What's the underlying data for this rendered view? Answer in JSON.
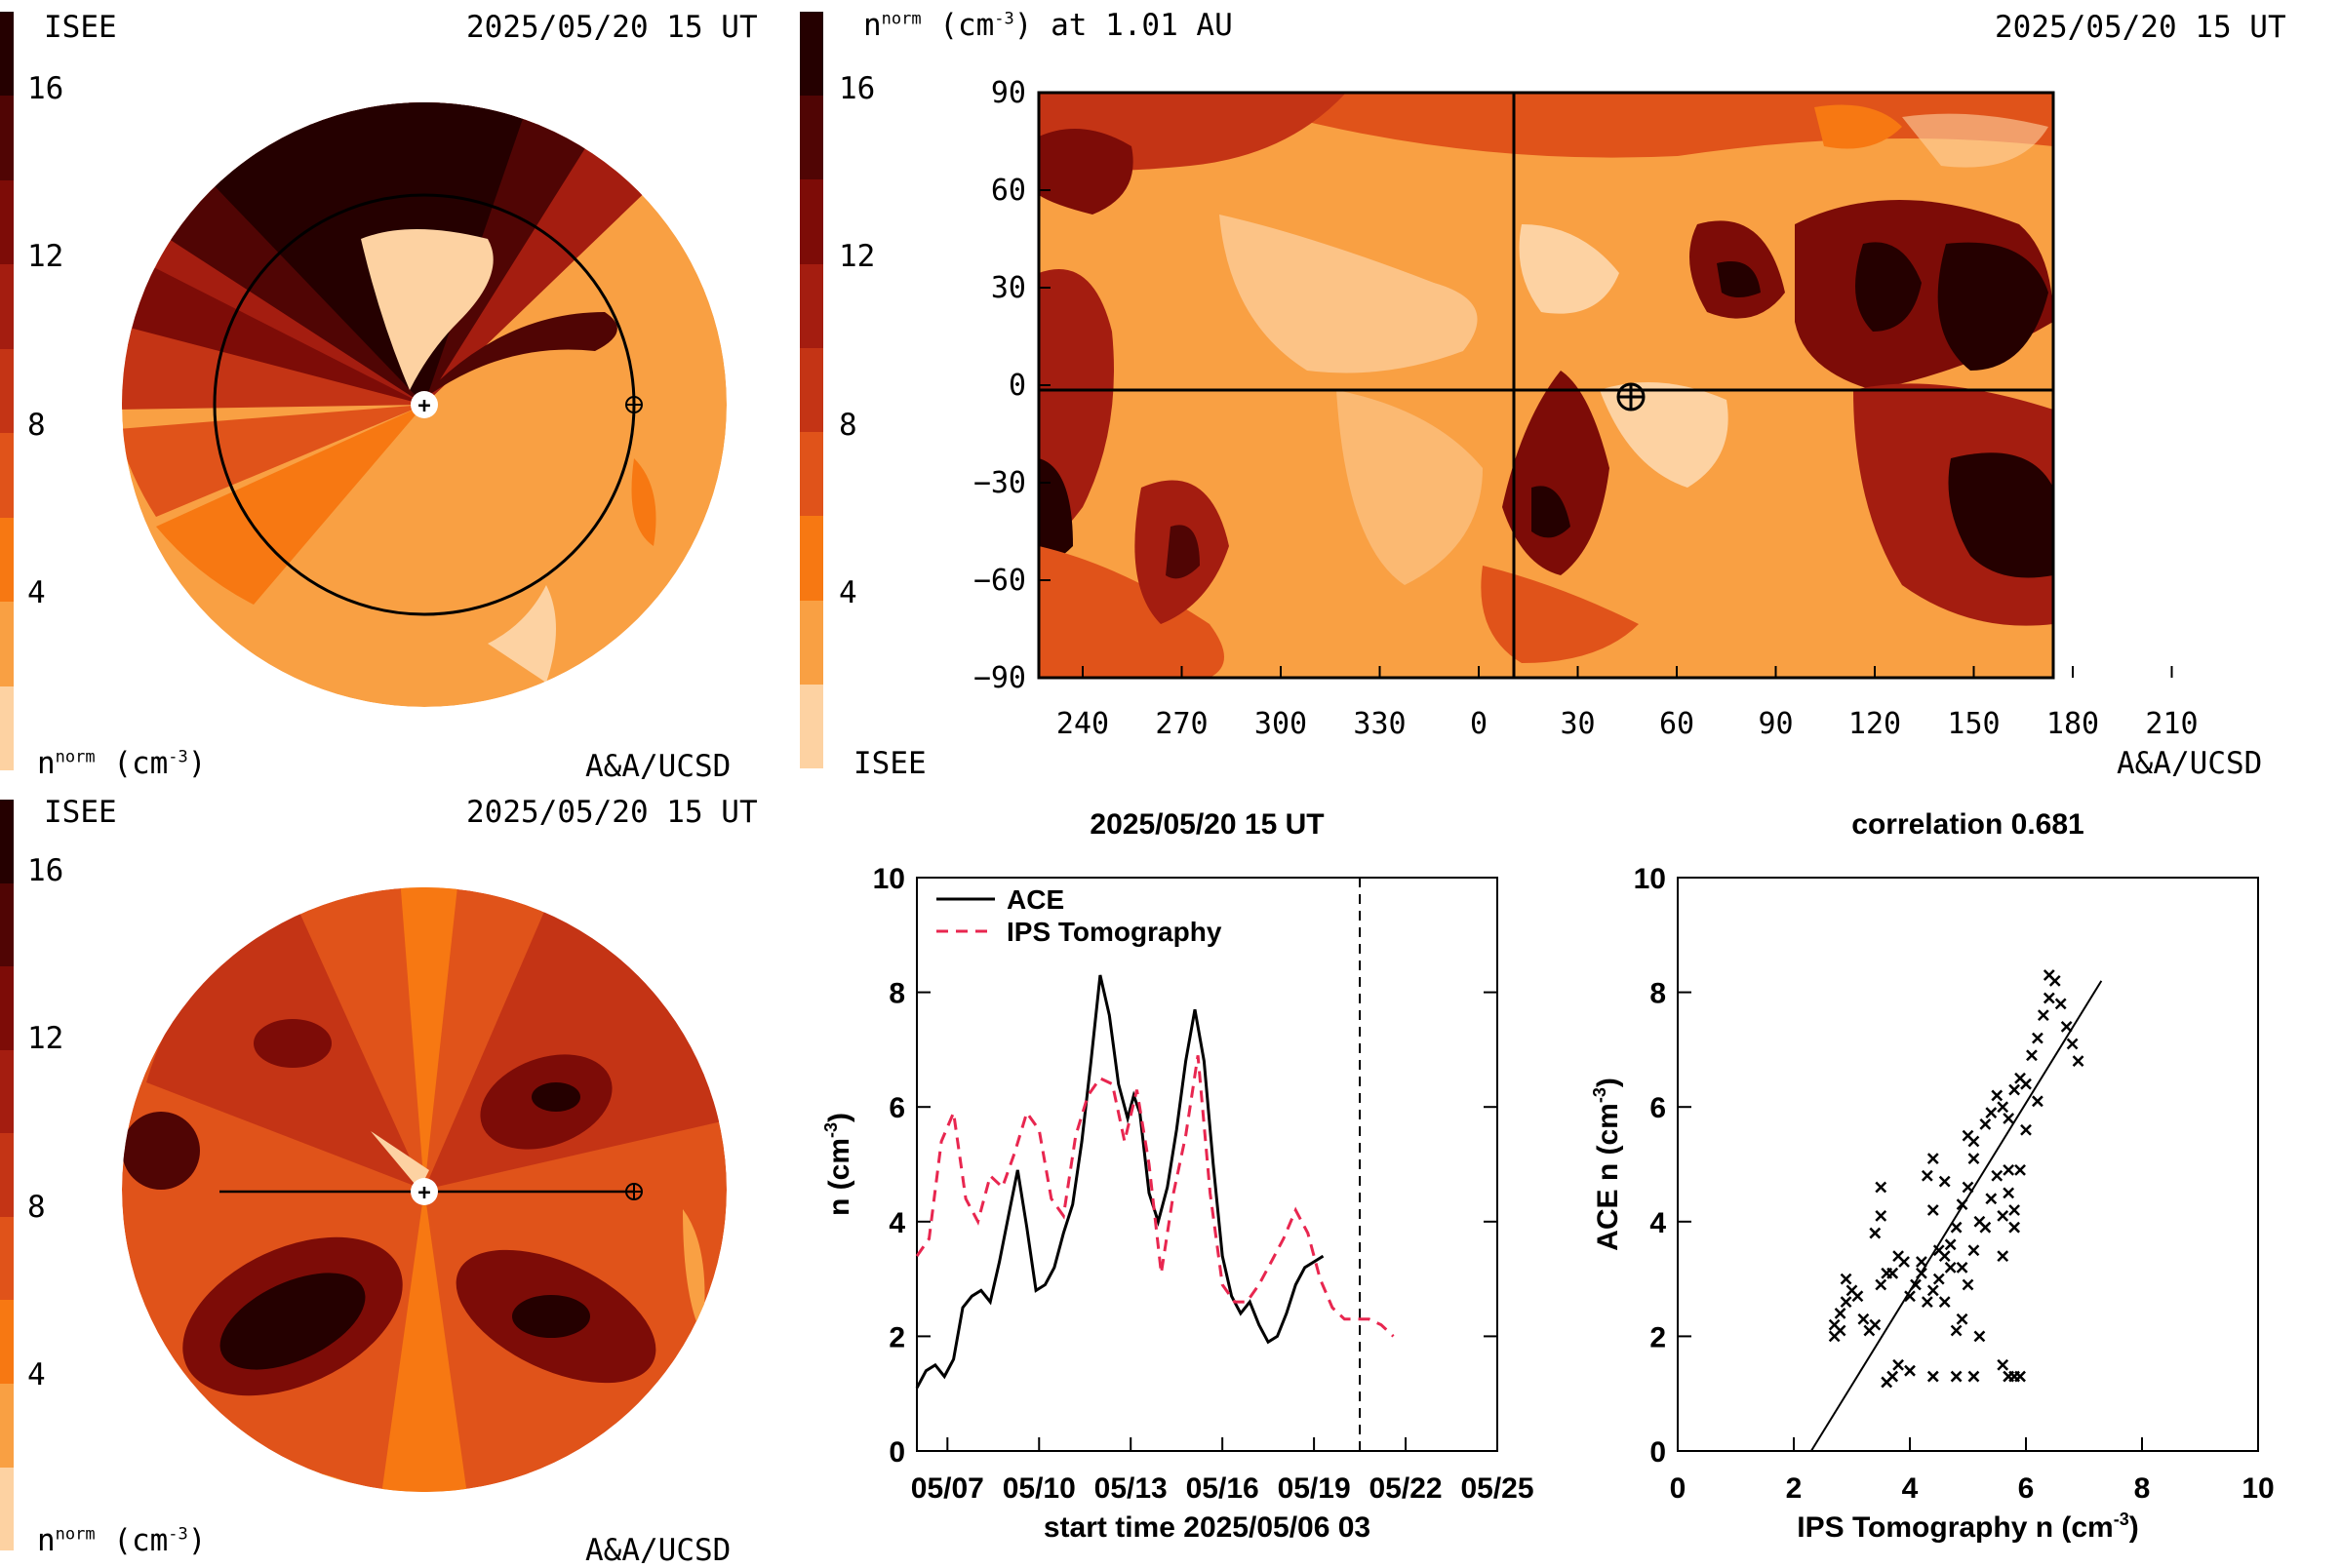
{
  "palette": [
    "#fdd2a2",
    "#f9a043",
    "#f77812",
    "#e0531a",
    "#c43415",
    "#a41d10",
    "#7d0c07",
    "#500504",
    "#250000"
  ],
  "panels": {
    "tl": {
      "org": "ISEE",
      "date": "2025/05/20 15 UT",
      "ylabel": "n",
      "ylabel_sup": "norm",
      "ylabel_unit": "(cm",
      "ylabel_unit_sup": "-3",
      "ylabel_close": ")",
      "credit": "A&A/UCSD",
      "colorbar_ticks": [
        "16",
        "12",
        "8",
        "4"
      ]
    },
    "bl": {
      "org": "ISEE",
      "date": "2025/05/20 15 UT",
      "ylabel": "n",
      "ylabel_sup": "norm",
      "ylabel_unit": "(cm",
      "ylabel_unit_sup": "-3",
      "ylabel_close": ")",
      "credit": "A&A/UCSD",
      "colorbar_ticks": [
        "16",
        "12",
        "8",
        "4"
      ]
    },
    "tr": {
      "title_n": "n",
      "title_sup": "norm",
      "title_unit": "(cm",
      "title_unit_sup": "-3",
      "title_rest": ") at 1.01 AU",
      "date": "2025/05/20 15 UT",
      "org": "ISEE",
      "credit": "A&A/UCSD",
      "colorbar_ticks": [
        "16",
        "12",
        "8",
        "4"
      ],
      "yticks": [
        "90",
        "60",
        "30",
        "0",
        "−30",
        "−60",
        "−90"
      ],
      "xticks": [
        "240",
        "270",
        "300",
        "330",
        "0",
        "30",
        "60",
        "90",
        "120",
        "150",
        "180",
        "210"
      ]
    }
  },
  "chart_data": [
    {
      "type": "line",
      "title": "2025/05/20 15 UT",
      "xlabel": "start time 2025/05/06 03",
      "ylabel": "n (cm",
      "ylabel_sup": "-3",
      "ylabel_close": ")",
      "xticks": [
        "05/07",
        "05/10",
        "05/13",
        "05/16",
        "05/19",
        "05/22",
        "05/25"
      ],
      "yticks": [
        "0",
        "2",
        "4",
        "6",
        "8",
        "10"
      ],
      "xlim": [
        0,
        19
      ],
      "ylim": [
        0,
        10
      ],
      "current_time_marker": 14.5,
      "series": [
        {
          "name": "ACE",
          "color": "#000000",
          "dash": "none",
          "x": [
            0,
            0.3,
            0.6,
            0.9,
            1.2,
            1.5,
            1.8,
            2.1,
            2.4,
            2.7,
            3.0,
            3.3,
            3.6,
            3.9,
            4.2,
            4.5,
            4.8,
            5.1,
            5.4,
            5.7,
            6.0,
            6.3,
            6.6,
            6.9,
            7.1,
            7.3,
            7.6,
            7.9,
            8.2,
            8.5,
            8.8,
            9.1,
            9.4,
            9.7,
            10.0,
            10.3,
            10.6,
            10.9,
            11.2,
            11.5,
            11.8,
            12.1,
            12.4,
            12.7,
            13.0,
            13.3,
            13.6,
            13.9,
            14.2,
            14.5
          ],
          "values": [
            1.1,
            1.4,
            1.5,
            1.3,
            1.6,
            2.5,
            2.7,
            2.8,
            2.6,
            3.3,
            4.1,
            4.9,
            3.9,
            2.8,
            2.9,
            3.2,
            3.8,
            4.3,
            5.4,
            6.8,
            8.3,
            7.6,
            6.4,
            5.8,
            6.2,
            5.9,
            4.5,
            4.0,
            4.6,
            5.6,
            6.8,
            7.7,
            6.8,
            5.0,
            3.4,
            2.7,
            2.4,
            2.6,
            2.2,
            1.9,
            2.0,
            2.4,
            2.9,
            3.2,
            3.3,
            3.4,
            null,
            null,
            null,
            null
          ]
        },
        {
          "name": "IPS Tomography",
          "color": "#e8264f",
          "dash": "12,8",
          "x": [
            0,
            0.4,
            0.8,
            1.2,
            1.6,
            2.0,
            2.4,
            2.8,
            3.2,
            3.6,
            4.0,
            4.4,
            4.8,
            5.2,
            5.6,
            6.0,
            6.4,
            6.8,
            7.2,
            7.6,
            8.0,
            8.4,
            8.8,
            9.2,
            9.6,
            10.0,
            10.4,
            10.8,
            11.2,
            11.6,
            12.0,
            12.4,
            12.8,
            13.2,
            13.6,
            14.0,
            14.4,
            14.8,
            15.2,
            15.6,
            16.0,
            16.4,
            16.8,
            17.2,
            17.6,
            18.0,
            18.4,
            18.8,
            19.0
          ],
          "values": [
            3.4,
            3.7,
            5.4,
            5.9,
            4.4,
            4.0,
            4.8,
            4.6,
            5.2,
            5.9,
            5.6,
            4.4,
            4.1,
            5.5,
            6.2,
            6.5,
            6.4,
            5.4,
            6.3,
            5.0,
            3.1,
            4.5,
            5.5,
            6.9,
            4.5,
            2.9,
            2.6,
            2.6,
            2.9,
            3.3,
            3.7,
            4.2,
            3.8,
            3.0,
            2.5,
            2.3,
            2.3,
            2.3,
            2.2,
            2.0,
            null,
            null,
            null,
            null,
            null,
            null,
            null,
            null,
            null
          ]
        }
      ],
      "legend": "top-left"
    },
    {
      "type": "scatter",
      "title": "correlation 0.681",
      "xlabel": "IPS Tomography n (cm",
      "xlabel_sup": "-3",
      "xlabel_close": ")",
      "ylabel": "ACE n (cm",
      "ylabel_sup": "-3",
      "ylabel_close": ")",
      "xticks": [
        "0",
        "2",
        "4",
        "6",
        "8",
        "10"
      ],
      "yticks": [
        "0",
        "2",
        "4",
        "6",
        "8",
        "10"
      ],
      "xlim": [
        0,
        10
      ],
      "ylim": [
        0,
        10
      ],
      "fit_line": {
        "x": [
          2.3,
          7.3
        ],
        "y": [
          0,
          8.2
        ]
      },
      "points": [
        [
          2.7,
          2.0
        ],
        [
          2.8,
          2.1
        ],
        [
          2.7,
          2.2
        ],
        [
          2.8,
          2.4
        ],
        [
          2.9,
          2.6
        ],
        [
          3.0,
          2.8
        ],
        [
          2.9,
          3.0
        ],
        [
          3.1,
          2.7
        ],
        [
          3.2,
          2.3
        ],
        [
          3.3,
          2.1
        ],
        [
          3.4,
          2.2
        ],
        [
          3.5,
          2.9
        ],
        [
          3.6,
          3.1
        ],
        [
          3.7,
          3.1
        ],
        [
          3.8,
          3.4
        ],
        [
          3.6,
          1.2
        ],
        [
          3.7,
          1.3
        ],
        [
          3.8,
          1.5
        ],
        [
          4.0,
          1.4
        ],
        [
          4.4,
          1.3
        ],
        [
          4.8,
          1.3
        ],
        [
          5.1,
          1.3
        ],
        [
          5.7,
          1.3
        ],
        [
          5.6,
          1.5
        ],
        [
          5.8,
          1.3
        ],
        [
          5.9,
          1.3
        ],
        [
          4.0,
          2.7
        ],
        [
          4.1,
          2.9
        ],
        [
          4.2,
          3.1
        ],
        [
          4.3,
          2.6
        ],
        [
          4.4,
          2.8
        ],
        [
          4.5,
          3.0
        ],
        [
          4.6,
          2.6
        ],
        [
          4.7,
          3.2
        ],
        [
          4.8,
          2.1
        ],
        [
          4.9,
          2.3
        ],
        [
          5.0,
          2.9
        ],
        [
          5.1,
          3.5
        ],
        [
          5.2,
          2.0
        ],
        [
          3.4,
          3.8
        ],
        [
          3.5,
          4.1
        ],
        [
          3.5,
          4.6
        ],
        [
          4.5,
          3.5
        ],
        [
          4.6,
          3.4
        ],
        [
          4.7,
          3.6
        ],
        [
          4.8,
          3.9
        ],
        [
          4.9,
          4.3
        ],
        [
          5.0,
          4.6
        ],
        [
          5.1,
          5.1
        ],
        [
          5.2,
          4.0
        ],
        [
          5.3,
          3.9
        ],
        [
          5.4,
          4.4
        ],
        [
          5.5,
          4.8
        ],
        [
          5.6,
          4.1
        ],
        [
          5.7,
          4.5
        ],
        [
          5.8,
          4.2
        ],
        [
          5.9,
          4.9
        ],
        [
          4.4,
          5.1
        ],
        [
          4.3,
          4.8
        ],
        [
          4.4,
          4.2
        ],
        [
          4.6,
          4.7
        ],
        [
          5.0,
          5.5
        ],
        [
          5.1,
          5.4
        ],
        [
          5.3,
          5.7
        ],
        [
          5.4,
          5.9
        ],
        [
          5.5,
          6.2
        ],
        [
          5.6,
          6.0
        ],
        [
          5.7,
          5.8
        ],
        [
          5.8,
          6.3
        ],
        [
          5.9,
          6.5
        ],
        [
          6.0,
          6.4
        ],
        [
          6.1,
          6.9
        ],
        [
          6.2,
          7.2
        ],
        [
          6.3,
          7.6
        ],
        [
          6.4,
          7.9
        ],
        [
          6.5,
          8.2
        ],
        [
          6.4,
          8.3
        ],
        [
          6.6,
          7.8
        ],
        [
          6.7,
          7.4
        ],
        [
          6.8,
          7.1
        ],
        [
          6.9,
          6.8
        ],
        [
          6.2,
          6.1
        ],
        [
          6.0,
          5.6
        ],
        [
          5.7,
          4.9
        ],
        [
          5.8,
          3.9
        ],
        [
          5.6,
          3.4
        ],
        [
          4.9,
          3.2
        ],
        [
          4.2,
          3.3
        ],
        [
          3.9,
          3.3
        ],
        [
          3.7,
          3.1
        ]
      ]
    }
  ]
}
